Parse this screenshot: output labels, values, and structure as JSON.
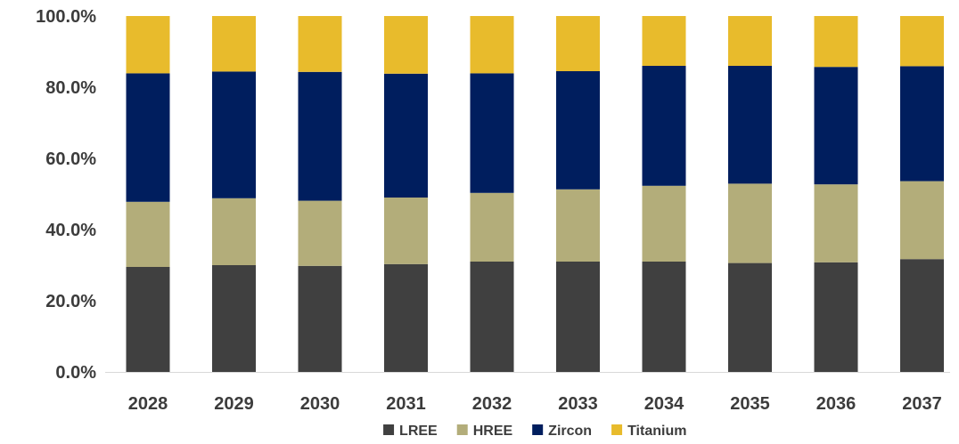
{
  "chart_data": {
    "type": "bar",
    "stacked": true,
    "categories": [
      "2028",
      "2029",
      "2030",
      "2031",
      "2032",
      "2033",
      "2034",
      "2035",
      "2036",
      "2037"
    ],
    "series": [
      {
        "name": "LREE",
        "color": "#404040",
        "values": [
          29.5,
          30.0,
          29.8,
          30.3,
          31.0,
          31.0,
          31.0,
          30.6,
          30.8,
          31.7
        ]
      },
      {
        "name": "HREE",
        "color": "#b3ad7a",
        "values": [
          18.3,
          18.8,
          18.3,
          18.7,
          19.3,
          20.3,
          21.3,
          22.3,
          21.9,
          21.9
        ]
      },
      {
        "name": "Zircon",
        "color": "#001e5e",
        "values": [
          36.1,
          35.6,
          36.2,
          34.8,
          33.6,
          33.2,
          33.7,
          33.1,
          33.0,
          32.3
        ]
      },
      {
        "name": "Titanium",
        "color": "#e8bb2c",
        "values": [
          16.1,
          15.6,
          15.7,
          16.2,
          16.1,
          15.5,
          14.0,
          14.0,
          14.3,
          14.1
        ]
      }
    ],
    "y_tick_labels": [
      "0.0%",
      "20.0%",
      "40.0%",
      "60.0%",
      "80.0%",
      "100.0%"
    ],
    "y_ticks": [
      0,
      20,
      40,
      60,
      80,
      100
    ],
    "ylim": [
      0,
      100
    ],
    "grid": false,
    "legend_position": "bottom-center"
  }
}
